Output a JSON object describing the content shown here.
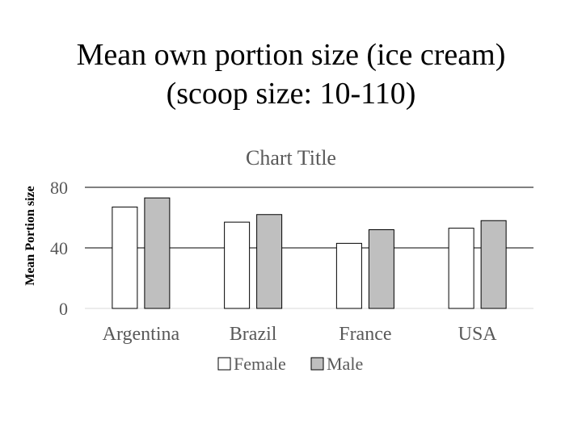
{
  "slide": {
    "title_line1": "Mean own portion size (ice cream)",
    "title_line2": "(scoop size: 10-110)"
  },
  "chart_data": {
    "type": "bar",
    "title": "Chart Title",
    "ylabel": "Mean Portion size",
    "xlabel": "",
    "categories": [
      "Argentina",
      "Brazil",
      "France",
      "USA"
    ],
    "series": [
      {
        "name": "Female",
        "values": [
          67,
          57,
          43,
          53
        ],
        "color": "#ffffff"
      },
      {
        "name": "Male",
        "values": [
          73,
          62,
          52,
          58
        ],
        "color": "#bfbfbf"
      }
    ],
    "yticks": [
      0,
      40,
      80
    ],
    "ylim": [
      0,
      80
    ],
    "grid": true,
    "legend": "bottom"
  }
}
